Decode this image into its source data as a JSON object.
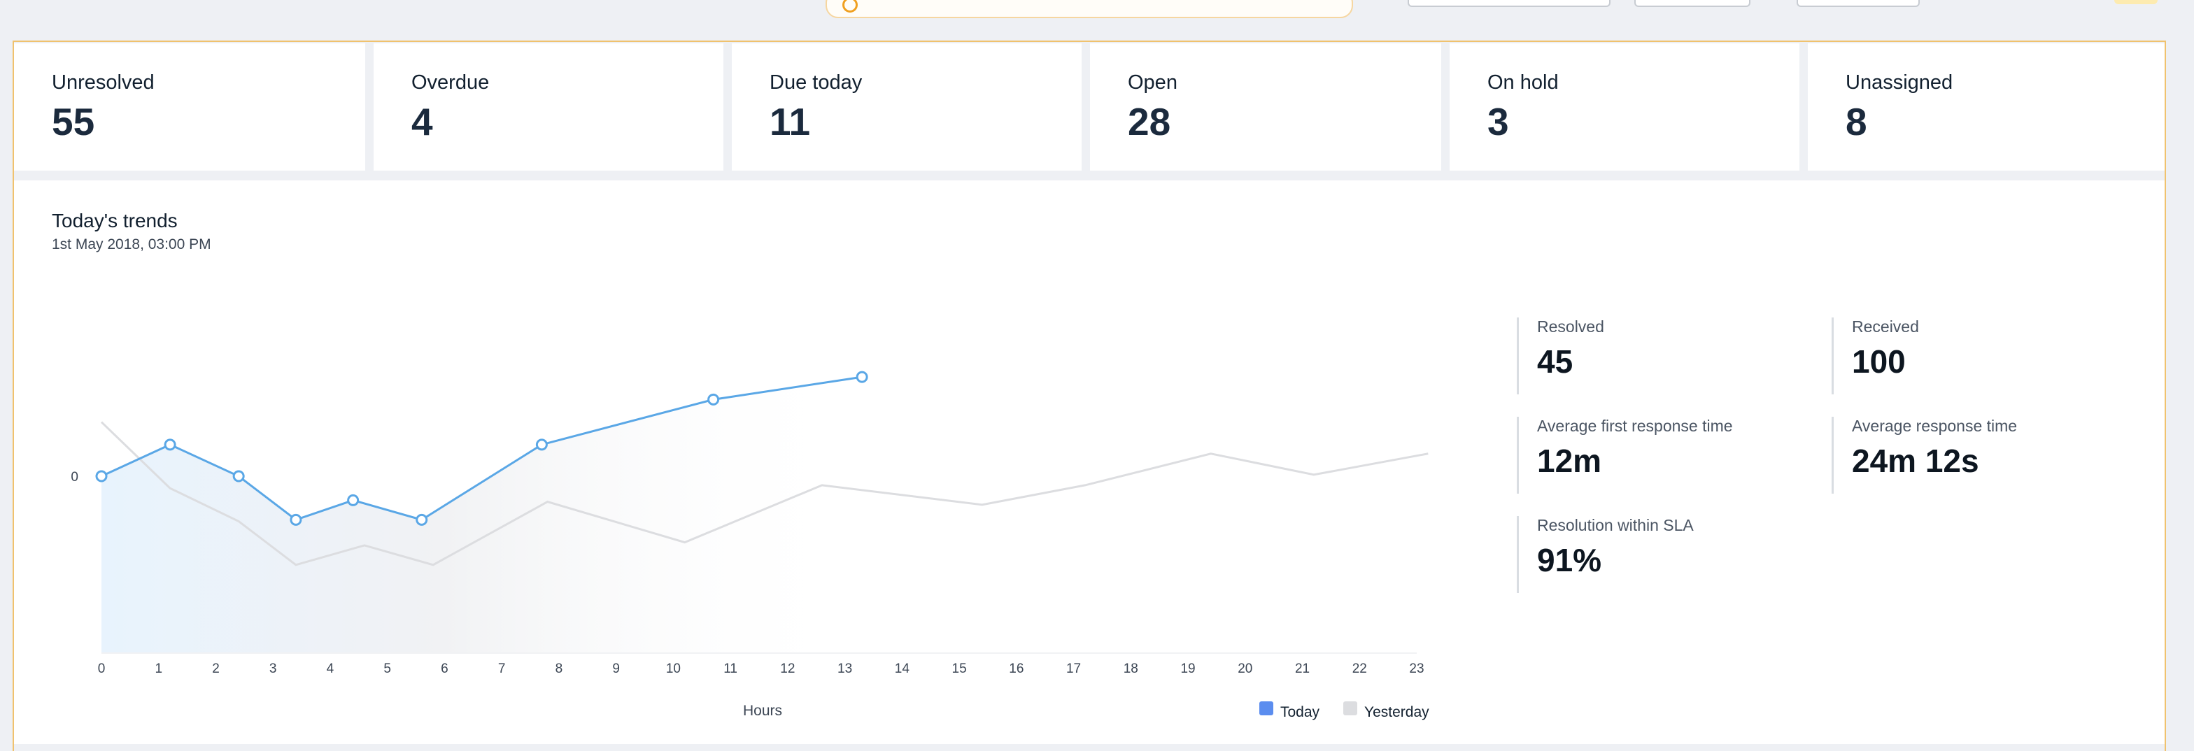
{
  "summary_cards": [
    {
      "label": "Unresolved",
      "value": "55"
    },
    {
      "label": "Overdue",
      "value": "4"
    },
    {
      "label": "Due today",
      "value": "11"
    },
    {
      "label": "Open",
      "value": "28"
    },
    {
      "label": "On hold",
      "value": "3"
    },
    {
      "label": "Unassigned",
      "value": "8"
    }
  ],
  "trends": {
    "title": "Today's trends",
    "subtitle": "1st May 2018, 03:00 PM"
  },
  "stats": [
    {
      "label": "Resolved",
      "value": "45"
    },
    {
      "label": "Received",
      "value": "100"
    },
    {
      "label": "Average first response time",
      "value": "12m"
    },
    {
      "label": "Average response time",
      "value": "24m 12s"
    },
    {
      "label": "Resolution within SLA",
      "value": "91%"
    }
  ],
  "chart_data": {
    "type": "line",
    "xlabel": "Hours",
    "ylabel": "",
    "x": [
      0,
      1,
      2,
      3,
      4,
      5,
      6,
      7,
      8,
      9,
      10,
      11,
      12,
      13,
      14,
      15,
      16,
      17,
      18,
      19,
      20,
      21,
      22,
      23
    ],
    "y_tick_labels": [
      "0"
    ],
    "series": [
      {
        "name": "Today",
        "color": "#5aa7e6",
        "points": [
          [
            0,
            0
          ],
          [
            1.2,
            2.1
          ],
          [
            2.4,
            0
          ],
          [
            3.4,
            -2.9
          ],
          [
            4.4,
            -1.6
          ],
          [
            5.6,
            -2.9
          ],
          [
            7.7,
            2.1
          ],
          [
            10.7,
            5.1
          ],
          [
            13.3,
            6.6
          ]
        ]
      },
      {
        "name": "Yesterday",
        "color": "#dcdde0",
        "points": [
          [
            0,
            3.6
          ],
          [
            1.2,
            -0.8
          ],
          [
            2.4,
            -3.0
          ],
          [
            3.4,
            -5.9
          ],
          [
            4.6,
            -4.6
          ],
          [
            5.8,
            -5.9
          ],
          [
            7.8,
            -1.7
          ],
          [
            10.2,
            -4.4
          ],
          [
            12.6,
            -0.6
          ],
          [
            15.4,
            -1.9
          ],
          [
            17.2,
            -0.6
          ],
          [
            19.4,
            1.5
          ],
          [
            21.2,
            0.1
          ],
          [
            23.2,
            1.5
          ]
        ]
      }
    ],
    "legend": [
      {
        "label": "Today",
        "color": "#5b8def"
      },
      {
        "label": "Yesterday",
        "color": "#dcdde0"
      }
    ],
    "legend_position": "bottom-right"
  }
}
